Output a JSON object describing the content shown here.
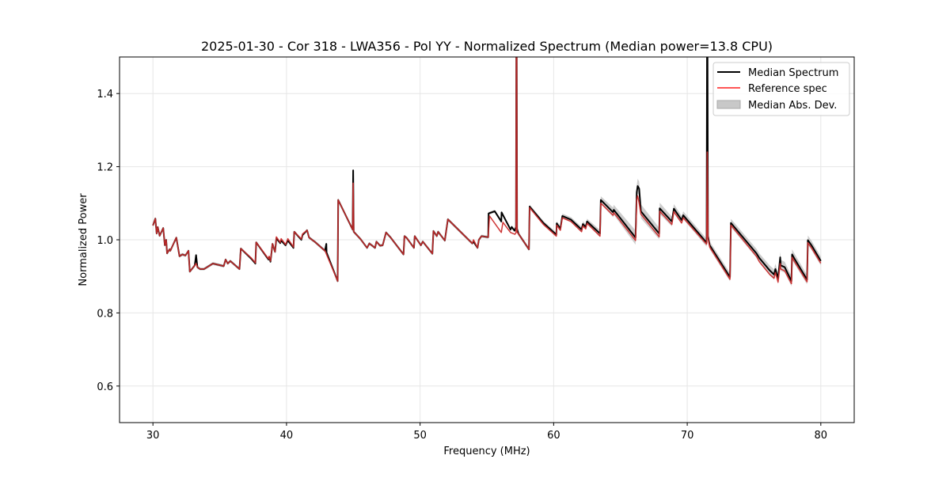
{
  "chart_data": {
    "type": "line",
    "title": "2025-01-30 - Cor 318 - LWA356 - Pol YY - Normalized Spectrum (Median power=13.8 CPU)",
    "xlabel": "Frequency (MHz)",
    "ylabel": "Normalized Power",
    "xlim": [
      27.5,
      82.5
    ],
    "ylim": [
      0.5,
      1.5
    ],
    "xticks": [
      30,
      40,
      50,
      60,
      70,
      80
    ],
    "xtick_labels": [
      "30",
      "40",
      "50",
      "60",
      "70",
      "80"
    ],
    "yticks": [
      0.6,
      0.8,
      1.0,
      1.2,
      1.4
    ],
    "ytick_labels": [
      "0.6",
      "0.8",
      "1.0",
      "1.2",
      "1.4"
    ],
    "grid": true,
    "legend_position": "top-right",
    "legend": [
      {
        "label": "Median Spectrum",
        "kind": "line",
        "color": "#000000"
      },
      {
        "label": "Reference spec",
        "kind": "line",
        "color": "#ff5555"
      },
      {
        "label": "Median Abs. Dev.",
        "kind": "patch",
        "color": "#c8c8c8"
      }
    ],
    "series": [
      {
        "name": "Median Spectrum",
        "color": "#000000",
        "points": [
          [
            30.0,
            1.039
          ],
          [
            30.18,
            1.058
          ],
          [
            30.28,
            1.017
          ],
          [
            30.36,
            1.035
          ],
          [
            30.5,
            1.011
          ],
          [
            30.77,
            1.032
          ],
          [
            30.89,
            0.985
          ],
          [
            30.99,
            1.0
          ],
          [
            31.06,
            0.963
          ],
          [
            31.24,
            0.974
          ],
          [
            31.3,
            0.97
          ],
          [
            31.75,
            1.006
          ],
          [
            31.83,
            0.989
          ],
          [
            31.99,
            0.955
          ],
          [
            32.2,
            0.96
          ],
          [
            32.43,
            0.957
          ],
          [
            32.66,
            0.97
          ],
          [
            32.76,
            0.913
          ],
          [
            33.13,
            0.93
          ],
          [
            33.23,
            0.958
          ],
          [
            33.33,
            0.925
          ],
          [
            33.53,
            0.92
          ],
          [
            33.83,
            0.92
          ],
          [
            34.49,
            0.935
          ],
          [
            35.3,
            0.928
          ],
          [
            35.44,
            0.946
          ],
          [
            35.6,
            0.935
          ],
          [
            35.79,
            0.942
          ],
          [
            36.48,
            0.92
          ],
          [
            36.58,
            0.976
          ],
          [
            37.37,
            0.948
          ],
          [
            37.67,
            0.935
          ],
          [
            37.73,
            0.993
          ],
          [
            38.65,
            0.946
          ],
          [
            38.7,
            0.953
          ],
          [
            38.8,
            0.94
          ],
          [
            38.95,
            0.989
          ],
          [
            39.14,
            0.967
          ],
          [
            39.24,
            1.004
          ],
          [
            39.53,
            0.991
          ],
          [
            39.6,
            0.998
          ],
          [
            39.93,
            0.985
          ],
          [
            40.1,
            0.998
          ],
          [
            40.52,
            0.978
          ],
          [
            40.58,
            1.022
          ],
          [
            41.11,
            1.0
          ],
          [
            41.2,
            1.013
          ],
          [
            41.54,
            1.026
          ],
          [
            41.69,
            1.006
          ],
          [
            42.1,
            0.995
          ],
          [
            42.88,
            0.97
          ],
          [
            42.98,
            0.989
          ],
          [
            43.0,
            0.965
          ],
          [
            43.83,
            0.887
          ],
          [
            43.87,
            1.109
          ],
          [
            44.95,
            1.028
          ],
          [
            44.99,
            1.19
          ],
          [
            45.03,
            1.022
          ],
          [
            45.54,
            1.002
          ],
          [
            46.03,
            0.978
          ],
          [
            46.2,
            0.99
          ],
          [
            46.63,
            0.978
          ],
          [
            46.73,
            0.995
          ],
          [
            47.0,
            0.984
          ],
          [
            47.2,
            0.985
          ],
          [
            47.45,
            1.02
          ],
          [
            47.8,
            1.006
          ],
          [
            48.76,
            0.96
          ],
          [
            48.83,
            1.01
          ],
          [
            49.0,
            1.005
          ],
          [
            49.54,
            0.978
          ],
          [
            49.6,
            1.01
          ],
          [
            50.06,
            0.985
          ],
          [
            50.2,
            0.995
          ],
          [
            50.92,
            0.962
          ],
          [
            51.0,
            1.024
          ],
          [
            51.25,
            1.01
          ],
          [
            51.35,
            1.022
          ],
          [
            51.85,
            0.998
          ],
          [
            52.08,
            1.056
          ],
          [
            53.91,
            0.99
          ],
          [
            54.0,
            0.995
          ],
          [
            54.3,
            0.978
          ],
          [
            54.4,
            1.0
          ],
          [
            54.6,
            1.01
          ],
          [
            55.1,
            1.007
          ],
          [
            55.13,
            1.072
          ],
          [
            55.59,
            1.078
          ],
          [
            56.08,
            1.05
          ],
          [
            56.1,
            1.075
          ],
          [
            56.77,
            1.028
          ],
          [
            56.86,
            1.035
          ],
          [
            57.07,
            1.025
          ],
          [
            57.18,
            1.035
          ],
          [
            57.22,
            1.8
          ],
          [
            57.26,
            1.03
          ],
          [
            57.36,
            1.017
          ],
          [
            58.15,
            0.974
          ],
          [
            58.2,
            1.091
          ],
          [
            59.23,
            1.046
          ],
          [
            60.2,
            1.014
          ],
          [
            60.23,
            1.045
          ],
          [
            60.5,
            1.03
          ],
          [
            60.65,
            1.065
          ],
          [
            61.3,
            1.055
          ],
          [
            62.09,
            1.028
          ],
          [
            62.19,
            1.043
          ],
          [
            62.4,
            1.035
          ],
          [
            62.5,
            1.05
          ],
          [
            63.47,
            1.017
          ],
          [
            63.53,
            1.109
          ],
          [
            64.45,
            1.075
          ],
          [
            64.5,
            1.082
          ],
          [
            66.13,
            1.006
          ],
          [
            66.22,
            1.13
          ],
          [
            66.29,
            1.147
          ],
          [
            66.4,
            1.14
          ],
          [
            66.53,
            1.078
          ],
          [
            67.9,
            1.017
          ],
          [
            67.94,
            1.086
          ],
          [
            68.85,
            1.05
          ],
          [
            69.0,
            1.085
          ],
          [
            69.58,
            1.054
          ],
          [
            69.7,
            1.067
          ],
          [
            71.45,
            0.992
          ],
          [
            71.5,
            1.8
          ],
          [
            71.55,
            1.01
          ],
          [
            71.68,
            0.985
          ],
          [
            73.2,
            0.898
          ],
          [
            73.27,
            1.046
          ],
          [
            75.18,
            0.963
          ],
          [
            75.4,
            0.95
          ],
          [
            76.18,
            0.916
          ],
          [
            76.5,
            0.905
          ],
          [
            76.6,
            0.92
          ],
          [
            76.8,
            0.894
          ],
          [
            76.96,
            0.952
          ],
          [
            77.0,
            0.93
          ],
          [
            77.3,
            0.925
          ],
          [
            77.8,
            0.887
          ],
          [
            77.85,
            0.96
          ],
          [
            78.0,
            0.95
          ],
          [
            78.97,
            0.891
          ],
          [
            79.03,
            0.999
          ],
          [
            79.3,
            0.985
          ],
          [
            80.0,
            0.942
          ]
        ]
      },
      {
        "name": "Reference spec",
        "color": "#ff5555",
        "points": [
          [
            30.0,
            1.039
          ],
          [
            30.18,
            1.058
          ],
          [
            30.28,
            1.017
          ],
          [
            30.36,
            1.035
          ],
          [
            30.5,
            1.011
          ],
          [
            30.77,
            1.032
          ],
          [
            30.89,
            0.985
          ],
          [
            30.99,
            1.0
          ],
          [
            31.06,
            0.963
          ],
          [
            31.24,
            0.974
          ],
          [
            31.3,
            0.97
          ],
          [
            31.75,
            1.006
          ],
          [
            31.83,
            0.989
          ],
          [
            31.99,
            0.955
          ],
          [
            32.2,
            0.96
          ],
          [
            32.43,
            0.957
          ],
          [
            32.66,
            0.97
          ],
          [
            32.76,
            0.913
          ],
          [
            33.13,
            0.93
          ],
          [
            33.23,
            0.935
          ],
          [
            33.33,
            0.925
          ],
          [
            33.53,
            0.92
          ],
          [
            33.83,
            0.92
          ],
          [
            34.49,
            0.935
          ],
          [
            35.3,
            0.928
          ],
          [
            35.44,
            0.946
          ],
          [
            35.6,
            0.935
          ],
          [
            35.79,
            0.942
          ],
          [
            36.48,
            0.92
          ],
          [
            36.58,
            0.976
          ],
          [
            37.37,
            0.95
          ],
          [
            37.67,
            0.937
          ],
          [
            37.73,
            0.993
          ],
          [
            38.65,
            0.948
          ],
          [
            38.7,
            0.955
          ],
          [
            38.8,
            0.942
          ],
          [
            38.95,
            0.989
          ],
          [
            39.14,
            0.967
          ],
          [
            39.24,
            1.008
          ],
          [
            39.53,
            0.993
          ],
          [
            39.6,
            1.003
          ],
          [
            39.93,
            0.987
          ],
          [
            40.1,
            1.003
          ],
          [
            40.52,
            0.98
          ],
          [
            40.58,
            1.022
          ],
          [
            41.11,
            1.002
          ],
          [
            41.2,
            1.016
          ],
          [
            41.54,
            1.026
          ],
          [
            41.69,
            1.006
          ],
          [
            42.1,
            0.995
          ],
          [
            42.88,
            0.97
          ],
          [
            43.83,
            0.887
          ],
          [
            43.87,
            1.109
          ],
          [
            44.95,
            1.028
          ],
          [
            44.99,
            1.155
          ],
          [
            45.03,
            1.022
          ],
          [
            45.54,
            1.002
          ],
          [
            46.03,
            0.978
          ],
          [
            46.2,
            0.99
          ],
          [
            46.63,
            0.978
          ],
          [
            46.73,
            0.995
          ],
          [
            47.0,
            0.984
          ],
          [
            47.2,
            0.985
          ],
          [
            47.45,
            1.02
          ],
          [
            47.8,
            1.006
          ],
          [
            48.76,
            0.96
          ],
          [
            48.83,
            1.01
          ],
          [
            49.0,
            1.005
          ],
          [
            49.54,
            0.978
          ],
          [
            49.6,
            1.01
          ],
          [
            50.06,
            0.985
          ],
          [
            50.2,
            0.995
          ],
          [
            50.92,
            0.962
          ],
          [
            51.0,
            1.024
          ],
          [
            51.25,
            1.01
          ],
          [
            51.35,
            1.022
          ],
          [
            51.85,
            0.998
          ],
          [
            52.08,
            1.056
          ],
          [
            53.91,
            0.99
          ],
          [
            54.0,
            1.0
          ],
          [
            54.3,
            0.978
          ],
          [
            54.4,
            1.0
          ],
          [
            54.6,
            1.01
          ],
          [
            55.1,
            1.007
          ],
          [
            55.2,
            1.065
          ],
          [
            56.08,
            1.02
          ],
          [
            56.2,
            1.048
          ],
          [
            56.77,
            1.02
          ],
          [
            57.1,
            1.015
          ],
          [
            57.18,
            1.02
          ],
          [
            57.22,
            1.8
          ],
          [
            57.26,
            1.02
          ],
          [
            57.36,
            1.017
          ],
          [
            58.15,
            0.974
          ],
          [
            58.2,
            1.088
          ],
          [
            59.23,
            1.042
          ],
          [
            60.2,
            1.01
          ],
          [
            60.23,
            1.04
          ],
          [
            60.5,
            1.026
          ],
          [
            60.65,
            1.06
          ],
          [
            61.3,
            1.05
          ],
          [
            62.09,
            1.022
          ],
          [
            62.19,
            1.038
          ],
          [
            62.4,
            1.03
          ],
          [
            62.5,
            1.045
          ],
          [
            63.47,
            1.01
          ],
          [
            63.53,
            1.1
          ],
          [
            64.45,
            1.067
          ],
          [
            64.5,
            1.074
          ],
          [
            66.13,
            0.998
          ],
          [
            66.22,
            1.11
          ],
          [
            66.29,
            1.12
          ],
          [
            66.4,
            1.1
          ],
          [
            66.53,
            1.07
          ],
          [
            67.9,
            1.008
          ],
          [
            67.94,
            1.078
          ],
          [
            68.85,
            1.042
          ],
          [
            69.0,
            1.077
          ],
          [
            69.58,
            1.046
          ],
          [
            69.7,
            1.06
          ],
          [
            71.45,
            0.988
          ],
          [
            71.5,
            1.24
          ],
          [
            71.55,
            1.005
          ],
          [
            71.68,
            0.98
          ],
          [
            73.2,
            0.892
          ],
          [
            73.27,
            1.04
          ],
          [
            75.18,
            0.955
          ],
          [
            75.4,
            0.94
          ],
          [
            76.18,
            0.905
          ],
          [
            76.5,
            0.895
          ],
          [
            76.6,
            0.91
          ],
          [
            76.8,
            0.884
          ],
          [
            76.96,
            0.935
          ],
          [
            77.0,
            0.92
          ],
          [
            77.3,
            0.915
          ],
          [
            77.8,
            0.88
          ],
          [
            77.85,
            0.952
          ],
          [
            78.0,
            0.942
          ],
          [
            78.97,
            0.885
          ],
          [
            79.03,
            0.992
          ],
          [
            79.3,
            0.978
          ],
          [
            80.0,
            0.936
          ]
        ]
      }
    ],
    "mad_band": {
      "name": "Median Abs. Dev.",
      "color": "#c8c8c8",
      "deviation": [
        [
          30,
          0.004
        ],
        [
          55,
          0.004
        ],
        [
          60,
          0.006
        ],
        [
          63,
          0.008
        ],
        [
          66.3,
          0.02
        ],
        [
          70,
          0.01
        ],
        [
          75,
          0.012
        ],
        [
          77,
          0.015
        ],
        [
          80,
          0.012
        ]
      ]
    }
  }
}
